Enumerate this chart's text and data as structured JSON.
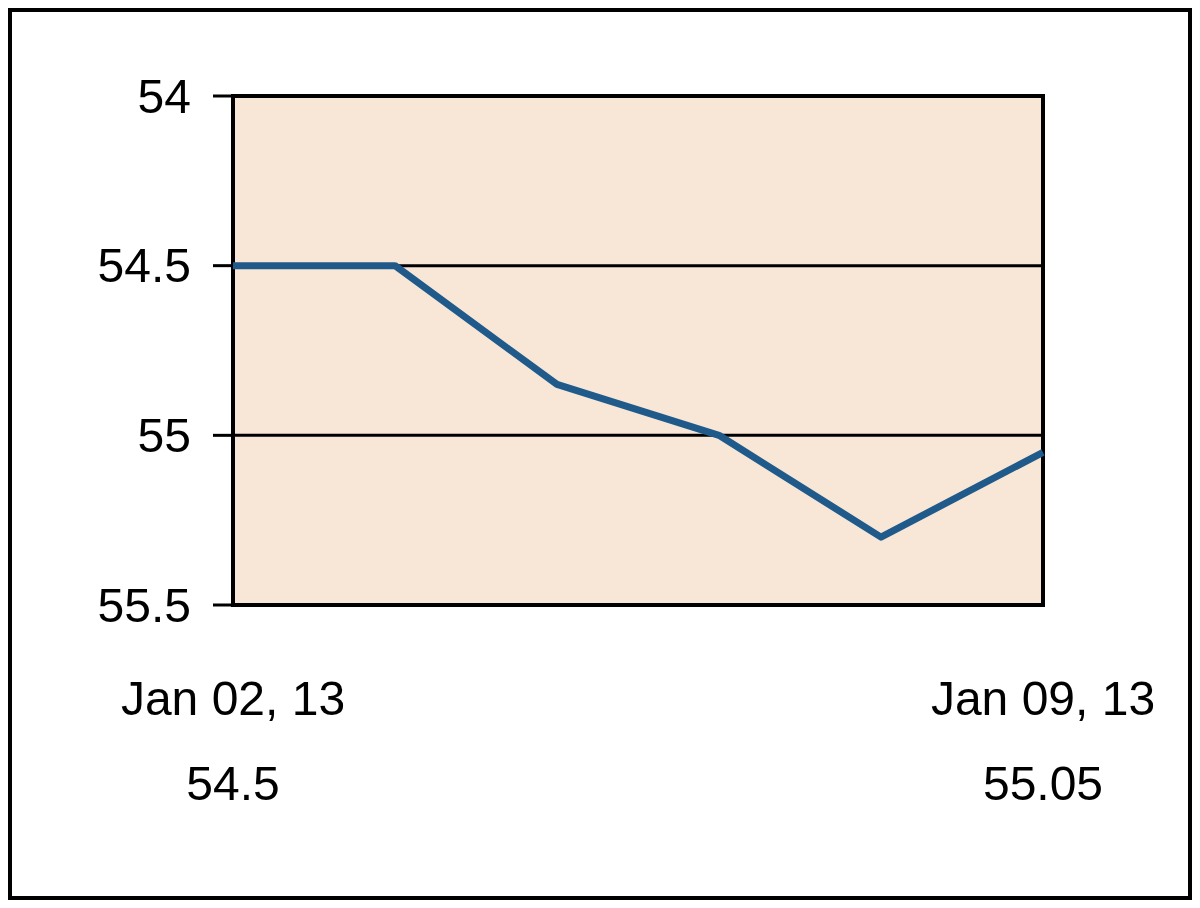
{
  "chart_data": {
    "type": "line",
    "categories": [
      "Jan 02, 13",
      null,
      null,
      null,
      null,
      "Jan 09, 13"
    ],
    "series": [
      {
        "color": "#1f5a8a",
        "values": [
          54.5,
          54.5,
          54.85,
          55.0,
          55.3,
          55.05
        ],
        "value_labels": [
          "54.5",
          null,
          null,
          null,
          null,
          "55.05"
        ]
      }
    ],
    "ylim": [
      55.5,
      54
    ],
    "yticks": [
      54,
      54.5,
      55,
      55.5
    ],
    "grid": "y",
    "marker": "none",
    "line_style": "solid"
  }
}
